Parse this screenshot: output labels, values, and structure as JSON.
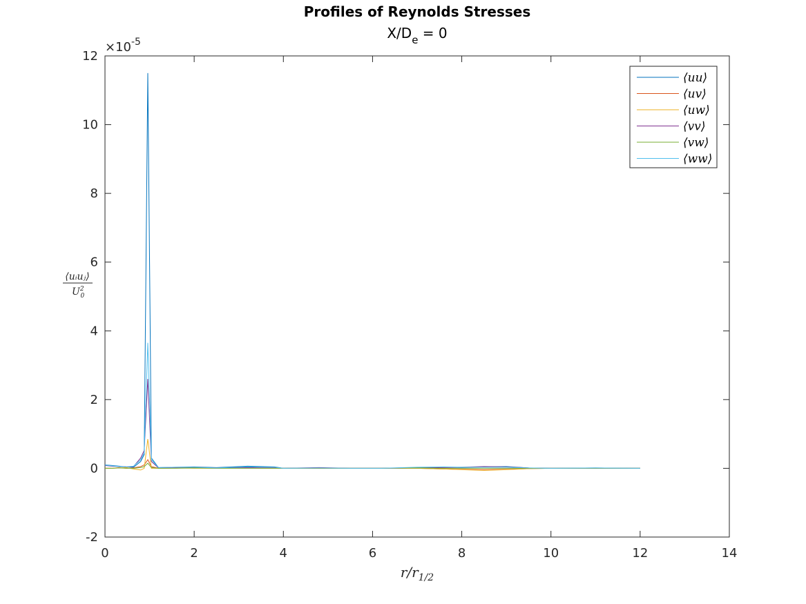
{
  "chart_data": {
    "type": "line",
    "title": "Profiles of Reynolds Stresses",
    "subtitle": {
      "base": "X/D",
      "sub": "e",
      "rest": " = 0"
    },
    "xlabel": {
      "base": "r/r",
      "sub": "1/2"
    },
    "ylabel": {
      "num": "⟨uᵢuⱼ⟩",
      "den_base": "U",
      "den_sup": "2",
      "den_sub": "0"
    },
    "y_exponent": {
      "prefix": "×10",
      "exp": "-5"
    },
    "xlim": [
      0,
      14
    ],
    "ylim": [
      -2,
      12
    ],
    "xticks": [
      0,
      2,
      4,
      6,
      8,
      10,
      12,
      14
    ],
    "yticks": [
      -2,
      0,
      2,
      4,
      6,
      8,
      10,
      12
    ],
    "grid": false,
    "legend_position": "top-right",
    "x": [
      0,
      0.16,
      0.32,
      0.48,
      0.64,
      0.8,
      0.88,
      0.96,
      1.04,
      1.2,
      1.6,
      2.0,
      2.5,
      3.2,
      3.8,
      4.0,
      4.8,
      5.5,
      6.2,
      7.0,
      7.6,
      8.0,
      8.5,
      9.0,
      9.5,
      10.0,
      11.0,
      12.0
    ],
    "series": [
      {
        "name": "⟨uu⟩",
        "color": "#0072BD",
        "values": [
          0.1,
          0.08,
          0.06,
          0.04,
          0.03,
          0.2,
          0.4,
          11.5,
          0.3,
          0.02,
          0.03,
          0.04,
          0.02,
          0.06,
          0.04,
          0.0,
          0.01,
          0.0,
          0.0,
          0.02,
          0.03,
          0.02,
          0.04,
          0.05,
          0.01,
          0.0,
          0.01,
          0.0
        ]
      },
      {
        "name": "⟨uv⟩",
        "color": "#D95319",
        "values": [
          0.0,
          0.0,
          0.02,
          0.0,
          0.01,
          0.05,
          0.1,
          0.25,
          0.05,
          0.0,
          0.01,
          0.02,
          0.01,
          0.01,
          0.0,
          0.0,
          0.0,
          0.0,
          0.0,
          0.0,
          -0.02,
          -0.03,
          -0.04,
          -0.03,
          -0.01,
          0.0,
          0.0,
          0.0
        ]
      },
      {
        "name": "⟨uw⟩",
        "color": "#EDB120",
        "values": [
          0.0,
          0.0,
          0.01,
          0.02,
          -0.02,
          -0.05,
          0.0,
          0.85,
          0.0,
          0.0,
          0.01,
          0.0,
          0.0,
          0.01,
          0.0,
          0.0,
          0.01,
          0.0,
          0.0,
          0.0,
          -0.02,
          -0.04,
          -0.06,
          -0.04,
          -0.01,
          0.0,
          0.0,
          0.0
        ]
      },
      {
        "name": "⟨vv⟩",
        "color": "#7E2F8E",
        "values": [
          0.08,
          0.06,
          0.05,
          0.04,
          0.05,
          0.3,
          0.52,
          2.6,
          0.2,
          0.01,
          0.02,
          0.03,
          0.01,
          0.02,
          0.01,
          0.0,
          0.02,
          0.0,
          0.0,
          0.01,
          0.02,
          0.03,
          0.05,
          0.04,
          0.01,
          0.0,
          0.0,
          0.0
        ]
      },
      {
        "name": "⟨vw⟩",
        "color": "#77AC30",
        "values": [
          0.0,
          0.0,
          0.01,
          0.0,
          0.0,
          0.02,
          0.05,
          0.15,
          0.02,
          0.0,
          0.0,
          0.01,
          0.0,
          0.0,
          0.0,
          0.0,
          0.0,
          0.0,
          0.0,
          0.01,
          0.0,
          0.0,
          0.0,
          0.0,
          0.0,
          0.0,
          0.0,
          0.0
        ]
      },
      {
        "name": "⟨ww⟩",
        "color": "#4DBEEE",
        "values": [
          0.09,
          0.07,
          0.05,
          0.04,
          0.06,
          0.25,
          0.45,
          3.65,
          0.25,
          0.02,
          0.03,
          0.03,
          0.01,
          0.04,
          0.03,
          0.0,
          0.01,
          0.0,
          0.0,
          0.03,
          0.04,
          0.03,
          0.03,
          0.03,
          0.01,
          0.0,
          0.01,
          0.0
        ]
      }
    ]
  }
}
